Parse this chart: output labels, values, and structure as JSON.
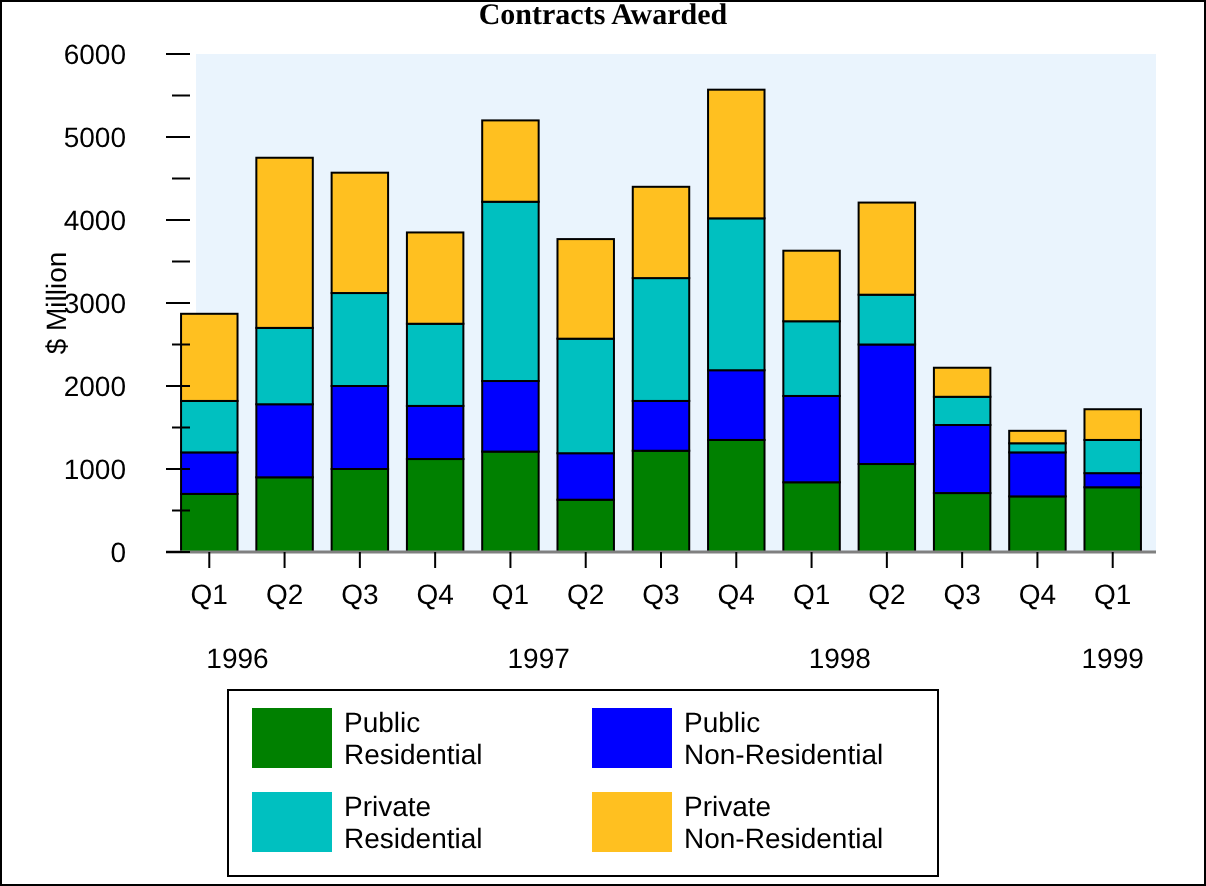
{
  "chart_data": {
    "type": "bar",
    "title": "Contracts Awarded",
    "ylabel": "$ Million",
    "stacked": true,
    "categories": [
      "Q1",
      "Q2",
      "Q3",
      "Q4",
      "Q1",
      "Q2",
      "Q3",
      "Q4",
      "Q1",
      "Q2",
      "Q3",
      "Q4",
      "Q1"
    ],
    "series": [
      {
        "name": "Public Residential",
        "color": "#008000",
        "values": [
          700,
          900,
          1000,
          1120,
          1210,
          630,
          1220,
          1350,
          840,
          1060,
          710,
          670,
          780
        ]
      },
      {
        "name": "Public Non-Residential",
        "color": "#0000ff",
        "values": [
          500,
          880,
          1000,
          640,
          850,
          560,
          600,
          840,
          1040,
          1440,
          820,
          530,
          170
        ]
      },
      {
        "name": "Private Residential",
        "color": "#00c0c0",
        "values": [
          620,
          920,
          1120,
          990,
          2160,
          1380,
          1480,
          1830,
          900,
          600,
          340,
          110,
          400
        ]
      },
      {
        "name": "Private Non-Residential",
        "color": "#ffc020",
        "values": [
          1050,
          2050,
          1450,
          1100,
          980,
          1200,
          1100,
          1550,
          850,
          1110,
          350,
          150,
          370
        ]
      }
    ],
    "ylim": [
      0,
      6000
    ],
    "yticks": [
      0,
      {
        "value": 500,
        "label": null
      },
      1000,
      {
        "value": 1500,
        "label": null
      },
      2000,
      {
        "value": 2500,
        "label": null
      },
      3000,
      {
        "value": 3500,
        "label": null
      },
      4000,
      {
        "value": 4500,
        "label": null
      },
      5000,
      {
        "value": 5500,
        "label": null
      },
      6000
    ],
    "annotations": [
      "1996",
      "1997",
      "1998",
      "1999"
    ],
    "legend": "bottom",
    "grid": false
  }
}
